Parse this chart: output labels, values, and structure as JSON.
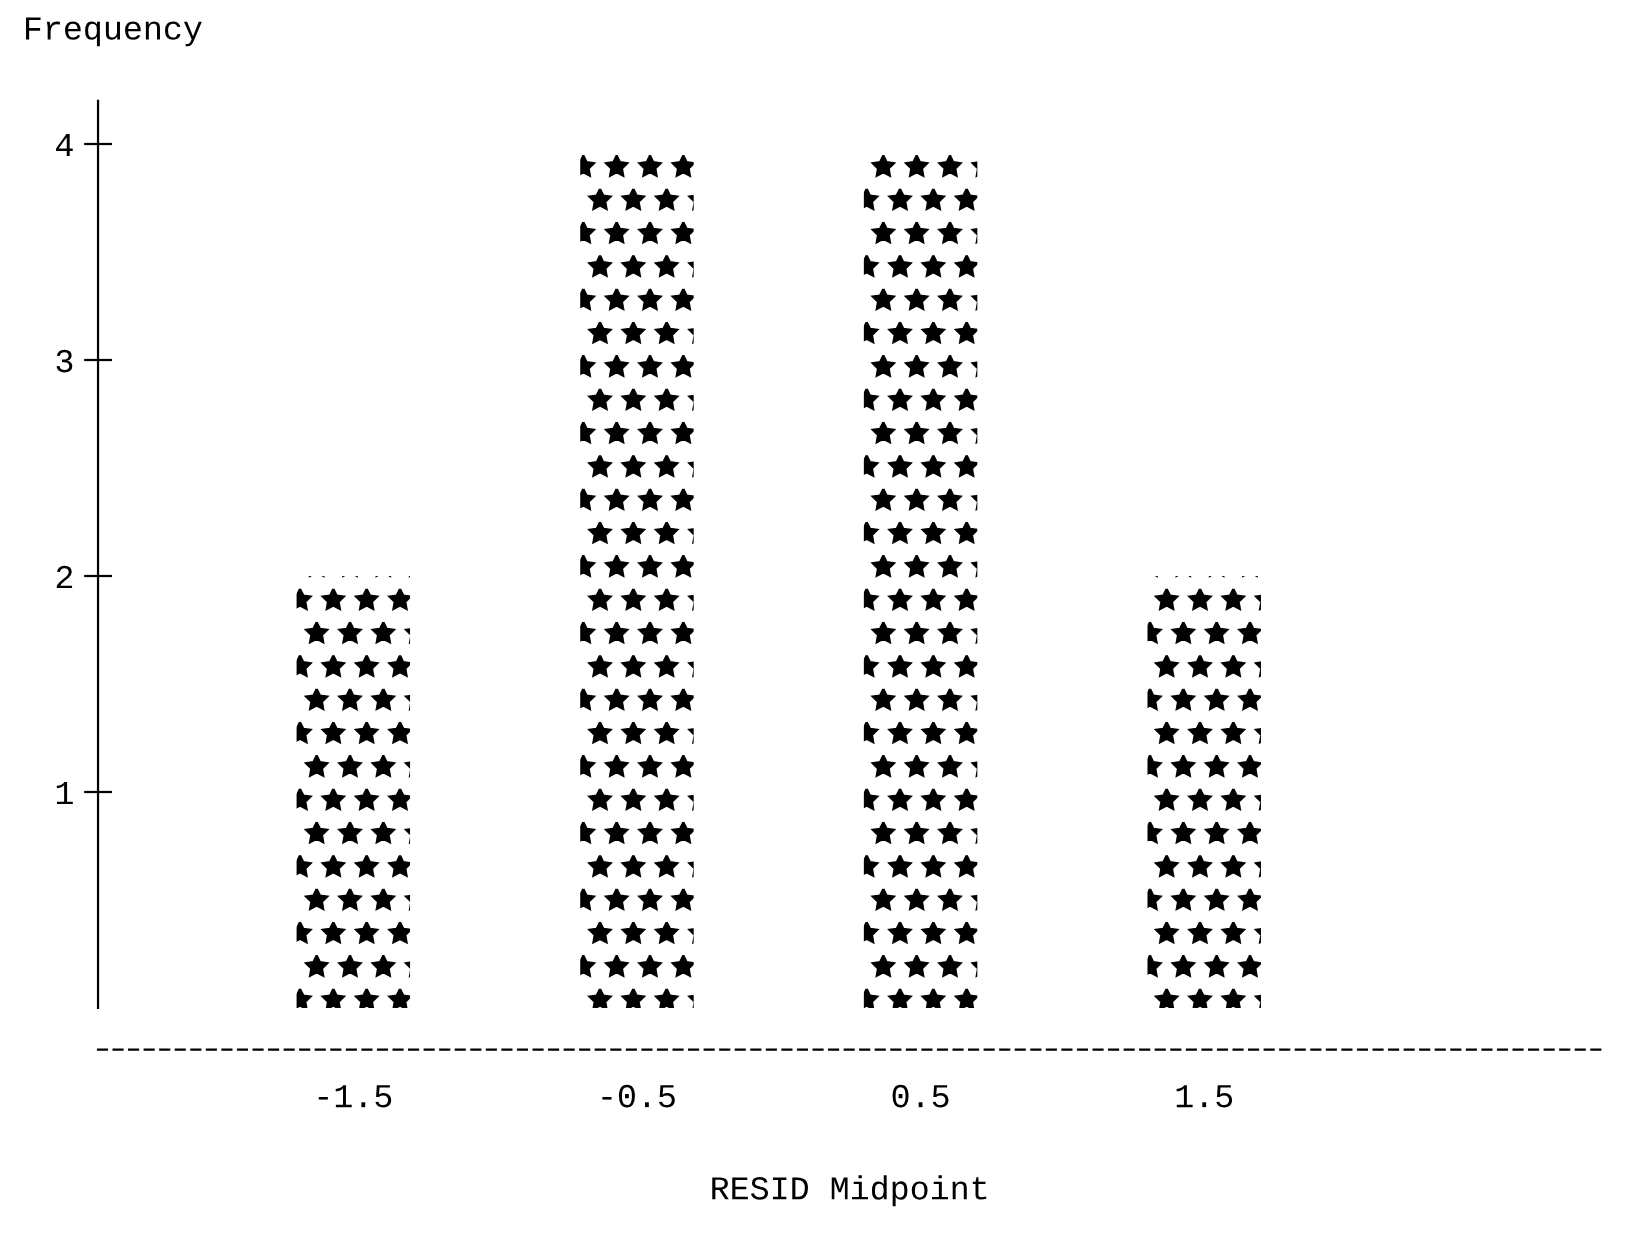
{
  "chart_data": {
    "type": "bar",
    "ylabel": "Frequency",
    "xlabel": "RESID Midpoint",
    "categories": [
      "-1.5",
      "-0.5",
      "0.5",
      "1.5"
    ],
    "values": [
      2,
      4,
      4,
      2
    ],
    "color": "#000000",
    "ylim": [
      0,
      4.2
    ],
    "yticks": [
      1,
      2,
      3,
      4
    ],
    "grid": false
  }
}
